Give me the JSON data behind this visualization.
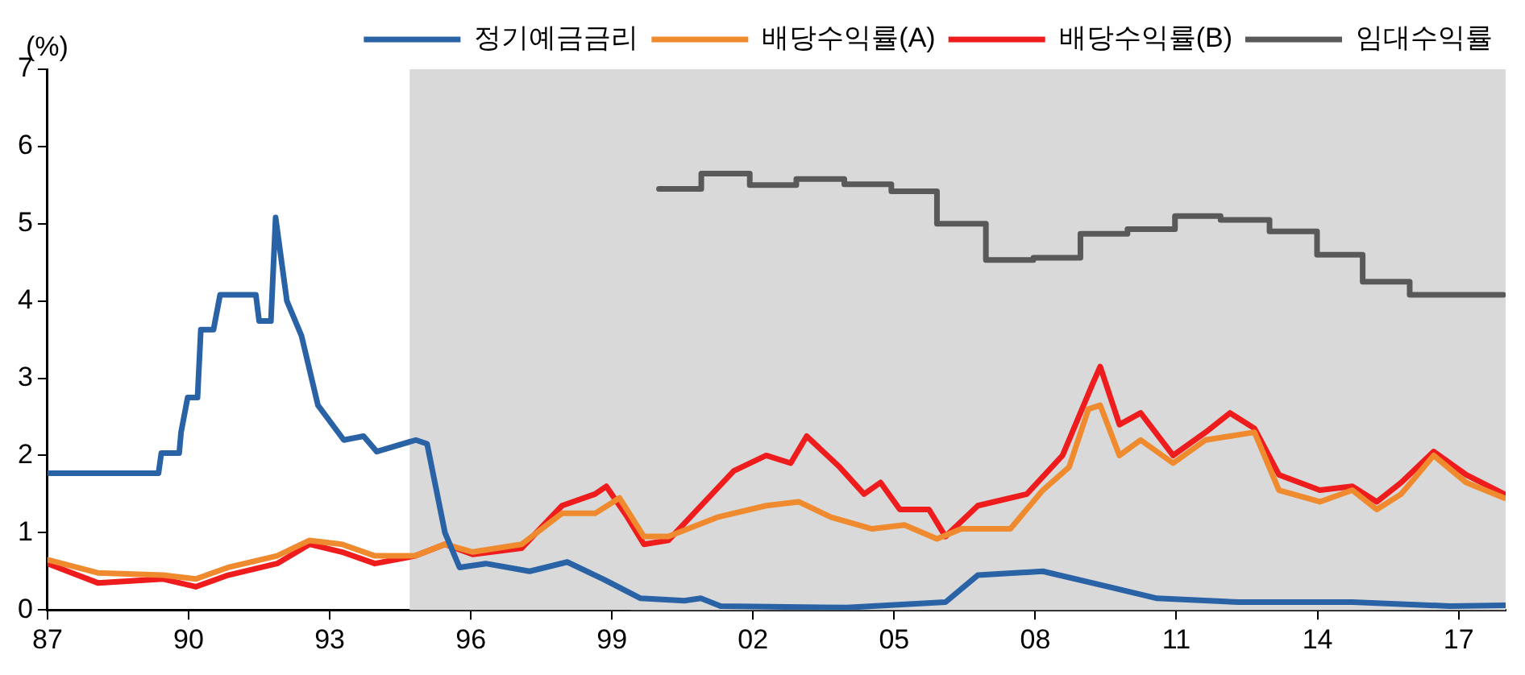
{
  "chart_data": {
    "type": "line",
    "ylabel": "(%)",
    "xlim": [
      1987,
      2018
    ],
    "xticks": [
      {
        "value": 1987,
        "label": "87"
      },
      {
        "value": 1990,
        "label": "90"
      },
      {
        "value": 1993,
        "label": "93"
      },
      {
        "value": 1996,
        "label": "96"
      },
      {
        "value": 1999,
        "label": "99"
      },
      {
        "value": 2002,
        "label": "02"
      },
      {
        "value": 2005,
        "label": "05"
      },
      {
        "value": 2008,
        "label": "08"
      },
      {
        "value": 2011,
        "label": "11"
      },
      {
        "value": 2014,
        "label": "14"
      },
      {
        "value": 2017,
        "label": "17"
      }
    ],
    "ylim": [
      0,
      7
    ],
    "yticks": [
      0,
      1,
      2,
      3,
      4,
      5,
      6,
      7
    ],
    "grid": false,
    "legend": "top right",
    "marker": "none",
    "line_style": "solid",
    "bands": [
      {
        "axis": "x",
        "from": 1994.7,
        "to": 2018,
        "color": "#d9d9d9"
      },
      {
        "axis": "x",
        "from": 1999.4,
        "to": 2018,
        "color": "#d9d9d9"
      }
    ],
    "series": [
      {
        "name": "정기예금금리",
        "color": "#2a62a6",
        "x": [
          1987.0,
          1989.36,
          1989.42,
          1989.8,
          1989.84,
          1989.98,
          1990.19,
          1990.26,
          1990.53,
          1990.67,
          1991.43,
          1991.5,
          1991.75,
          1991.85,
          1992.09,
          1992.4,
          1992.75,
          1993.3,
          1993.72,
          1994.0,
          1994.83,
          1995.07,
          1995.45,
          1995.76,
          1996.32,
          1997.25,
          1998.05,
          1998.81,
          1999.61,
          2000.54,
          2000.89,
          2001.31,
          2004.0,
          2006.09,
          2006.78,
          2008.16,
          2009.55,
          2010.59,
          2012.32,
          2014.74,
          2016.82,
          2017.97
        ],
        "values": [
          1.77,
          1.77,
          2.03,
          2.03,
          2.3,
          2.75,
          2.75,
          3.63,
          3.63,
          4.08,
          4.08,
          3.74,
          3.74,
          5.08,
          4.0,
          3.55,
          2.65,
          2.2,
          2.25,
          2.05,
          2.2,
          2.15,
          1.0,
          0.55,
          0.6,
          0.5,
          0.62,
          0.4,
          0.15,
          0.12,
          0.15,
          0.05,
          0.03,
          0.1,
          0.45,
          0.5,
          0.3,
          0.15,
          0.1,
          0.1,
          0.05,
          0.06
        ]
      },
      {
        "name": "배당수익률(A)",
        "color": "#ef8a2f",
        "x": [
          1987.0,
          1988.07,
          1989.46,
          1990.15,
          1990.84,
          1991.88,
          1992.57,
          1993.26,
          1993.96,
          1994.82,
          1995.45,
          1996.04,
          1997.08,
          1997.94,
          1998.64,
          1999.16,
          1999.68,
          2000.2,
          2001.24,
          2002.28,
          2002.97,
          2003.66,
          2004.53,
          2005.22,
          2005.91,
          2006.43,
          2007.47,
          2008.16,
          2008.72,
          2009.13,
          2009.38,
          2009.79,
          2010.24,
          2010.93,
          2011.62,
          2012.14,
          2012.66,
          2013.18,
          2014.05,
          2014.74,
          2015.26,
          2015.78,
          2016.47,
          2017.16,
          2017.97
        ],
        "values": [
          0.65,
          0.48,
          0.45,
          0.4,
          0.55,
          0.7,
          0.9,
          0.85,
          0.7,
          0.7,
          0.85,
          0.75,
          0.85,
          1.25,
          1.25,
          1.45,
          0.95,
          0.95,
          1.2,
          1.35,
          1.4,
          1.2,
          1.05,
          1.1,
          0.92,
          1.05,
          1.05,
          1.55,
          1.85,
          2.6,
          2.65,
          2.0,
          2.2,
          1.9,
          2.2,
          2.25,
          2.3,
          1.55,
          1.4,
          1.55,
          1.3,
          1.5,
          2.0,
          1.65,
          1.45
        ]
      },
      {
        "name": "배당수익률(B)",
        "color": "#ee1c1c",
        "x": [
          1987.0,
          1988.07,
          1989.46,
          1990.15,
          1990.84,
          1991.88,
          1992.57,
          1993.26,
          1993.96,
          1994.82,
          1995.45,
          1996.04,
          1997.08,
          1997.94,
          1998.64,
          1998.88,
          1999.33,
          1999.68,
          2000.2,
          2001.59,
          2002.28,
          2002.8,
          2003.14,
          2003.84,
          2004.36,
          2004.71,
          2005.12,
          2005.74,
          2006.09,
          2006.78,
          2007.82,
          2008.58,
          2009.2,
          2009.38,
          2009.79,
          2010.24,
          2010.93,
          2011.62,
          2012.14,
          2012.66,
          2013.18,
          2014.05,
          2014.74,
          2015.26,
          2015.78,
          2016.47,
          2017.16,
          2017.97
        ],
        "values": [
          0.6,
          0.35,
          0.4,
          0.3,
          0.45,
          0.6,
          0.85,
          0.75,
          0.6,
          0.7,
          0.85,
          0.72,
          0.8,
          1.35,
          1.5,
          1.6,
          1.2,
          0.85,
          0.9,
          1.8,
          2.0,
          1.9,
          2.25,
          1.85,
          1.5,
          1.65,
          1.3,
          1.3,
          0.95,
          1.35,
          1.5,
          2.0,
          2.9,
          3.15,
          2.4,
          2.55,
          2.0,
          2.3,
          2.55,
          2.35,
          1.75,
          1.55,
          1.6,
          1.4,
          1.65,
          2.05,
          1.75,
          1.5
        ]
      },
      {
        "name": "임대수익률",
        "color": "#595959",
        "type": "step",
        "x": [
          2000.0,
          2000.9,
          2001.93,
          2002.92,
          2003.94,
          2004.94,
          2005.91,
          2006.95,
          2007.96,
          2008.96,
          2009.96,
          2010.97,
          2011.94,
          2012.98,
          2013.99,
          2014.96,
          2015.96,
          2017.95
        ],
        "values": [
          5.45,
          5.65,
          5.5,
          5.58,
          5.51,
          5.42,
          5.0,
          4.53,
          4.56,
          4.87,
          4.93,
          5.1,
          5.05,
          4.9,
          4.6,
          4.25,
          4.08,
          4.08
        ]
      }
    ]
  }
}
